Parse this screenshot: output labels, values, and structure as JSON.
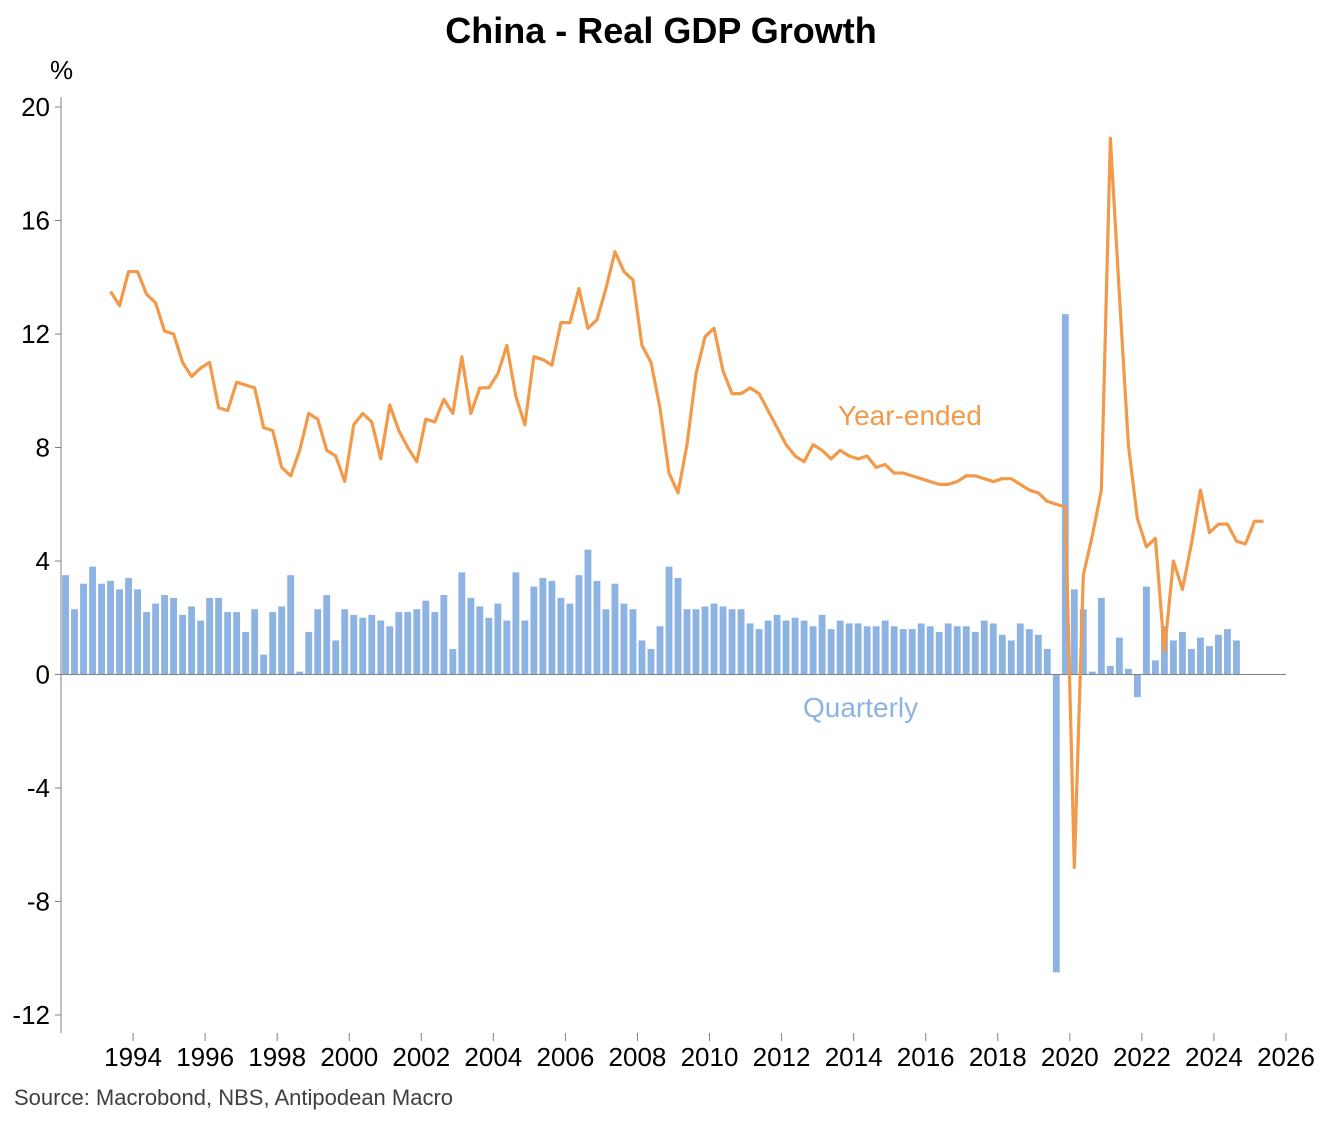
{
  "title": "China - Real GDP Growth",
  "source": "Source: Macrobond, NBS, Antipodean Macro",
  "colors": {
    "bar": "#8db3e2",
    "line": "#f2994a",
    "axis": "#808080",
    "text": "#000000"
  },
  "chart_data": {
    "type": "bar+line",
    "title": "China - Real GDP Growth",
    "ylabel": "%",
    "ylim": [
      -12,
      20
    ],
    "yticks": [
      "20",
      "16",
      "12",
      "8",
      "4",
      "0",
      "-4",
      "-8",
      "-12"
    ],
    "xlim": [
      1992.0,
      2026.0
    ],
    "xticks": [
      "1994",
      "1996",
      "1998",
      "2000",
      "2002",
      "2004",
      "2006",
      "2008",
      "2010",
      "2012",
      "2014",
      "2016",
      "2018",
      "2020",
      "2022",
      "2024",
      "2026"
    ],
    "grid": false,
    "legend": "inline labels",
    "series": [
      {
        "name": "Quarterly",
        "kind": "bar",
        "start_quarter": "1992Q1",
        "values": [
          3.5,
          2.3,
          3.2,
          3.8,
          3.2,
          3.3,
          3.0,
          3.4,
          3.0,
          2.2,
          2.5,
          2.8,
          2.7,
          2.1,
          2.4,
          1.9,
          2.7,
          2.7,
          2.2,
          2.2,
          1.5,
          2.3,
          0.7,
          2.2,
          2.4,
          3.5,
          0.1,
          1.5,
          2.3,
          2.8,
          1.2,
          2.3,
          2.1,
          2.0,
          2.1,
          1.9,
          1.7,
          2.2,
          2.2,
          2.3,
          2.6,
          2.2,
          2.8,
          0.9,
          3.6,
          2.7,
          2.4,
          2.0,
          2.5,
          1.9,
          3.6,
          1.9,
          3.1,
          3.4,
          3.3,
          2.7,
          2.5,
          3.5,
          4.4,
          3.3,
          2.3,
          3.2,
          2.5,
          2.3,
          1.2,
          0.9,
          1.7,
          3.8,
          3.4,
          2.3,
          2.3,
          2.4,
          2.5,
          2.4,
          2.3,
          2.3,
          1.8,
          1.6,
          1.9,
          2.1,
          1.9,
          2.0,
          1.9,
          1.7,
          2.1,
          1.6,
          1.9,
          1.8,
          1.8,
          1.7,
          1.7,
          1.9,
          1.7,
          1.6,
          1.6,
          1.8,
          1.7,
          1.5,
          1.8,
          1.7,
          1.7,
          1.5,
          1.9,
          1.8,
          1.4,
          1.2,
          1.8,
          1.6,
          1.4,
          0.9,
          -10.5,
          12.7,
          3.0,
          2.3,
          0.1,
          2.7,
          0.3,
          1.3,
          0.2,
          -0.8,
          3.1,
          0.5,
          1.7,
          1.2,
          1.5,
          0.9,
          1.3,
          1.0,
          1.4,
          1.6,
          1.2
        ]
      },
      {
        "name": "Year-ended",
        "kind": "line",
        "start_quarter": "1993Q2",
        "values": [
          13.5,
          13.0,
          14.2,
          14.2,
          13.4,
          13.1,
          12.1,
          12.0,
          11.0,
          10.5,
          10.8,
          11.0,
          9.4,
          9.3,
          10.3,
          10.2,
          10.1,
          8.7,
          8.6,
          7.3,
          7.0,
          7.9,
          9.2,
          9.0,
          7.9,
          7.7,
          6.8,
          8.8,
          9.2,
          8.9,
          7.6,
          9.5,
          8.6,
          8.0,
          7.5,
          9.0,
          8.9,
          9.7,
          9.2,
          11.2,
          9.2,
          10.1,
          10.1,
          10.6,
          11.6,
          9.8,
          8.8,
          11.2,
          11.1,
          10.9,
          12.4,
          12.4,
          13.6,
          12.2,
          12.5,
          13.6,
          14.9,
          14.2,
          13.9,
          11.6,
          11.0,
          9.4,
          7.1,
          6.4,
          8.1,
          10.6,
          11.9,
          12.2,
          10.7,
          9.9,
          9.9,
          10.1,
          9.9,
          9.3,
          8.7,
          8.1,
          7.7,
          7.5,
          8.1,
          7.9,
          7.6,
          7.9,
          7.7,
          7.6,
          7.7,
          7.3,
          7.4,
          7.1,
          7.1,
          7.0,
          6.9,
          6.8,
          6.7,
          6.7,
          6.8,
          7.0,
          7.0,
          6.9,
          6.8,
          6.9,
          6.9,
          6.7,
          6.5,
          6.4,
          6.1,
          6.0,
          5.9,
          -6.8,
          3.5,
          4.9,
          6.5,
          18.9,
          13.4,
          8.1,
          5.5,
          4.5,
          4.8,
          0.8,
          4.0,
          3.0,
          4.6,
          6.5,
          5.0,
          5.3,
          5.3,
          4.7,
          4.6,
          5.4,
          5.4
        ]
      }
    ],
    "annotations": [
      "Year-ended",
      "Quarterly"
    ]
  }
}
